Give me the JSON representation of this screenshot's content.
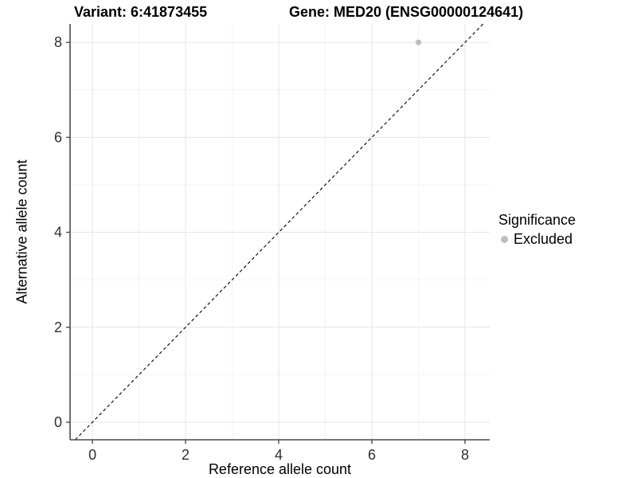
{
  "titles": {
    "variant": "Variant: 6:41873455",
    "gene": "Gene: MED20 (ENSG00000124641)"
  },
  "legend": {
    "title": "Significance",
    "items": [
      {
        "label": "Excluded",
        "color": "#bdbdbd"
      }
    ]
  },
  "chart_data": {
    "type": "scatter",
    "title_left": "Variant: 6:41873455",
    "title_right": "Gene: MED20 (ENSG00000124641)",
    "xlabel": "Reference allele count",
    "ylabel": "Alternative allele count",
    "x_ticks": [
      0,
      2,
      4,
      6,
      8
    ],
    "y_ticks": [
      0,
      2,
      4,
      6,
      8
    ],
    "x_minor": [
      1,
      3,
      5,
      7
    ],
    "y_minor": [
      1,
      3,
      5,
      7
    ],
    "xlim": [
      -0.48,
      8.53
    ],
    "ylim": [
      -0.37,
      8.39
    ],
    "grid": true,
    "legend_position": "right",
    "series": [
      {
        "name": "Excluded",
        "color": "#bdbdbd",
        "points": [
          {
            "x": 7,
            "y": 8
          }
        ]
      }
    ],
    "reference_line": {
      "kind": "identity",
      "slope": 1,
      "intercept": 0,
      "style": "dashed",
      "color": "#000000"
    },
    "colors": {
      "background": "#ffffff",
      "grid_major": "#e7e7e7",
      "grid_minor": "#f3f3f3",
      "axis_line": "#4a4a4a",
      "tick_label": "#303030",
      "point": "#bdbdbd"
    }
  }
}
